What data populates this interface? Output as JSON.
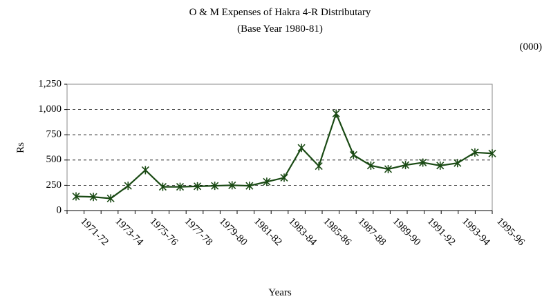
{
  "chart_data": {
    "type": "line",
    "title": "O & M Expenses of Hakra 4-R Distributary",
    "subtitle": "(Base Year 1980-81)",
    "unit_note": "(000)",
    "y_label": "Rs",
    "x_label": "Years",
    "categories": [
      "1971-72",
      null,
      "1973-74",
      null,
      "1975-76",
      null,
      "1977-78",
      null,
      "1979-80",
      null,
      "1981-82",
      null,
      "1983-84",
      null,
      "1985-86",
      null,
      "1987-88",
      null,
      "1989-90",
      null,
      "1991-92",
      null,
      "1993-94",
      null,
      "1995-96"
    ],
    "series": [
      {
        "name": "O & M Expenses",
        "color": "#1a4a14",
        "values": [
          140,
          135,
          120,
          245,
          400,
          235,
          235,
          240,
          245,
          250,
          245,
          285,
          325,
          620,
          440,
          960,
          550,
          445,
          410,
          450,
          475,
          445,
          470,
          575,
          565
        ]
      }
    ],
    "ylim": [
      0,
      1250
    ],
    "yticks": [
      0,
      250,
      500,
      750,
      {
        "value": 1000,
        "label": "1,000"
      },
      {
        "value": 1250,
        "label": "1,250"
      }
    ],
    "grid": true
  }
}
